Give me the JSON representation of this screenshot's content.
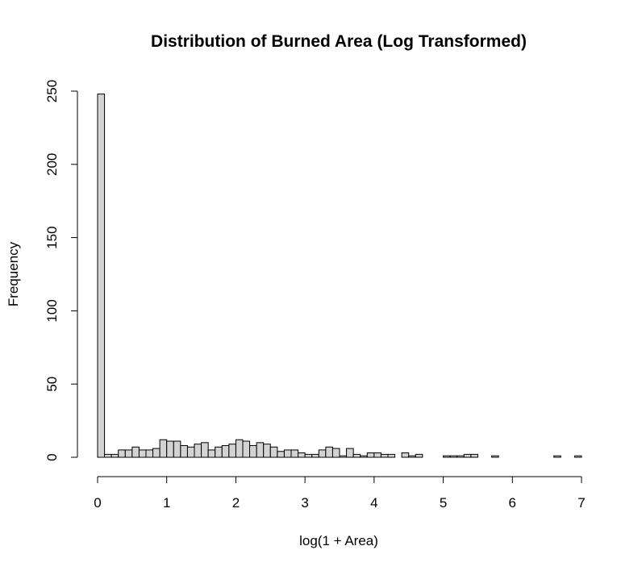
{
  "chart_data": {
    "type": "bar",
    "title": "Distribution of Burned Area (Log Transformed)",
    "xlabel": "log(1 + Area)",
    "ylabel": "Frequency",
    "xlim": [
      0,
      7
    ],
    "ylim": [
      0,
      250
    ],
    "x_ticks": [
      "0",
      "1",
      "2",
      "3",
      "4",
      "5",
      "6",
      "7"
    ],
    "y_ticks": [
      "0",
      "50",
      "100",
      "150",
      "200",
      "250"
    ],
    "bin_width": 0.1,
    "bin_start": 0,
    "values": [
      248,
      2,
      2,
      5,
      5,
      7,
      5,
      5,
      6,
      12,
      11,
      11,
      8,
      7,
      9,
      10,
      5,
      7,
      8,
      9,
      12,
      11,
      8,
      10,
      9,
      7,
      4,
      5,
      5,
      3,
      2,
      2,
      5,
      7,
      6,
      1,
      6,
      2,
      1,
      3,
      3,
      2,
      2,
      0,
      3,
      1,
      2,
      0,
      0,
      0,
      1,
      1,
      1,
      2,
      2,
      0,
      0,
      1,
      0,
      0,
      0,
      0,
      0,
      0,
      0,
      0,
      1,
      0,
      0,
      1
    ],
    "colors": {
      "bar_fill": "#d3d3d3",
      "bar_stroke": "#000000"
    },
    "grid": false
  }
}
